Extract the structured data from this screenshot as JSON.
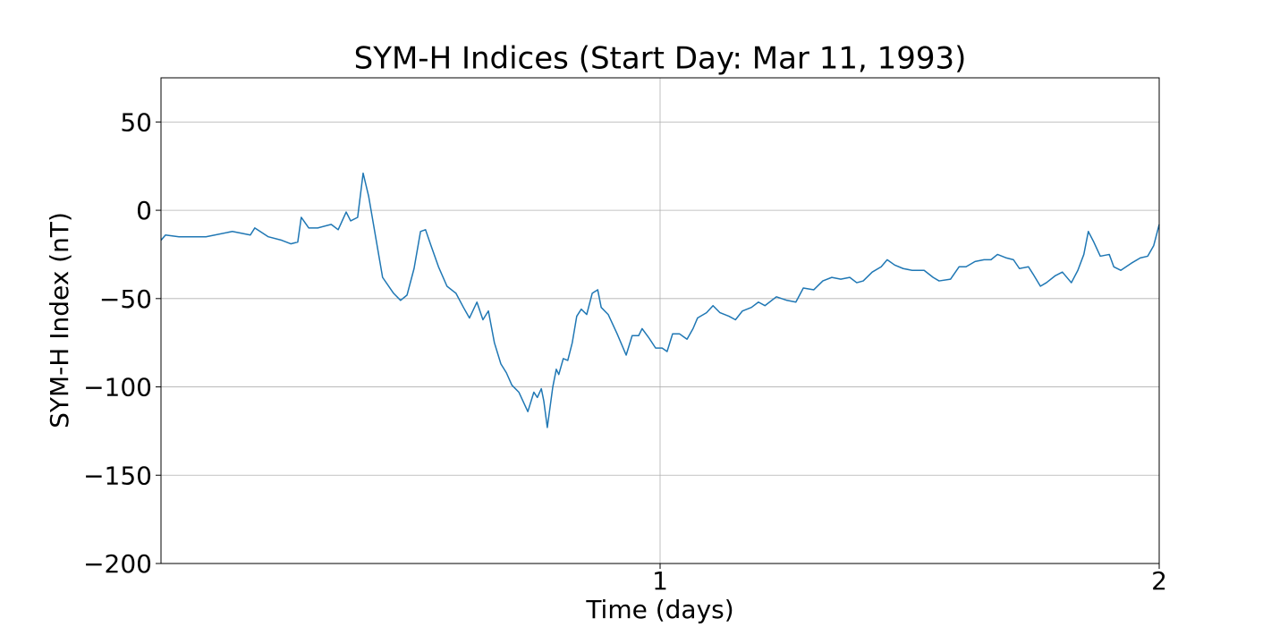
{
  "chart_data": {
    "type": "line",
    "title": "SYM-H Indices (Start Day: Mar 11, 1993)",
    "x_label": "Time (days)",
    "y_label": "SYM-H Index (nT)",
    "x": [
      0,
      0.009,
      0.036,
      0.09,
      0.143,
      0.179,
      0.188,
      0.215,
      0.242,
      0.26,
      0.274,
      0.281,
      0.296,
      0.314,
      0.341,
      0.355,
      0.371,
      0.38,
      0.394,
      0.405,
      0.416,
      0.43,
      0.444,
      0.466,
      0.48,
      0.493,
      0.507,
      0.52,
      0.53,
      0.541,
      0.556,
      0.573,
      0.591,
      0.606,
      0.618,
      0.633,
      0.645,
      0.656,
      0.668,
      0.681,
      0.692,
      0.703,
      0.717,
      0.735,
      0.747,
      0.754,
      0.762,
      0.767,
      0.774,
      0.785,
      0.792,
      0.797,
      0.806,
      0.815,
      0.824,
      0.833,
      0.842,
      0.853,
      0.864,
      0.875,
      0.882,
      0.896,
      0.914,
      0.932,
      0.944,
      0.957,
      0.964,
      0.977,
      0.991,
      1.004,
      1.014,
      1.025,
      1.039,
      1.054,
      1.066,
      1.075,
      1.093,
      1.106,
      1.12,
      1.138,
      1.151,
      1.165,
      1.183,
      1.197,
      1.21,
      1.233,
      1.254,
      1.272,
      1.287,
      1.308,
      1.326,
      1.344,
      1.362,
      1.38,
      1.394,
      1.407,
      1.425,
      1.443,
      1.455,
      1.47,
      1.487,
      1.505,
      1.529,
      1.547,
      1.559,
      1.582,
      1.599,
      1.613,
      1.631,
      1.649,
      1.663,
      1.676,
      1.694,
      1.708,
      1.72,
      1.738,
      1.747,
      1.762,
      1.774,
      1.792,
      1.806,
      1.824,
      1.837,
      1.849,
      1.858,
      1.869,
      1.882,
      1.9,
      1.909,
      1.923,
      1.944,
      1.962,
      1.977,
      1.989,
      2
    ],
    "series": [
      {
        "color": "#1f77b4",
        "values": [
          -17,
          -14,
          -15,
          -15,
          -12,
          -14,
          -10,
          -15,
          -17,
          -19,
          -18,
          -4,
          -10,
          -10,
          -8,
          -11,
          -1,
          -6,
          -4,
          21,
          8,
          -15,
          -38,
          -47,
          -51,
          -48,
          -33,
          -12,
          -11,
          -20,
          -32,
          -43,
          -47,
          -55,
          -61,
          -52,
          -62,
          -57,
          -75,
          -87,
          -92,
          -99,
          -103,
          -114,
          -103,
          -106,
          -101,
          -108,
          -123,
          -100,
          -90,
          -93,
          -84,
          -85,
          -75,
          -60,
          -56,
          -59,
          -47,
          -45,
          -55,
          -59,
          -70,
          -82,
          -71,
          -71,
          -67,
          -72,
          -78,
          -78,
          -80,
          -70,
          -70,
          -73,
          -67,
          -61,
          -58,
          -54,
          -58,
          -60,
          -62,
          -57,
          -55,
          -52,
          -54,
          -49,
          -51,
          -52,
          -44,
          -45,
          -40,
          -38,
          -39,
          -38,
          -41,
          -40,
          -35,
          -32,
          -28,
          -31,
          -33,
          -34,
          -34,
          -38,
          -40,
          -39,
          -32,
          -32,
          -29,
          -28,
          -28,
          -25,
          -27,
          -28,
          -33,
          -32,
          -36,
          -43,
          -41,
          -37,
          -35,
          -41,
          -34,
          -25,
          -12,
          -18,
          -26,
          -25,
          -32,
          -34,
          -30,
          -27,
          -26,
          -20,
          -8
        ]
      }
    ],
    "xlim": [
      0,
      2
    ],
    "xticks": [
      1,
      2
    ],
    "ylim": [
      -200,
      75
    ],
    "yticks": [
      {
        "value": -200,
        "label": "−200"
      },
      {
        "value": -150,
        "label": "−150"
      },
      {
        "value": -100,
        "label": "−100"
      },
      {
        "value": -50,
        "label": "−50"
      },
      0,
      50
    ],
    "grid": true
  }
}
